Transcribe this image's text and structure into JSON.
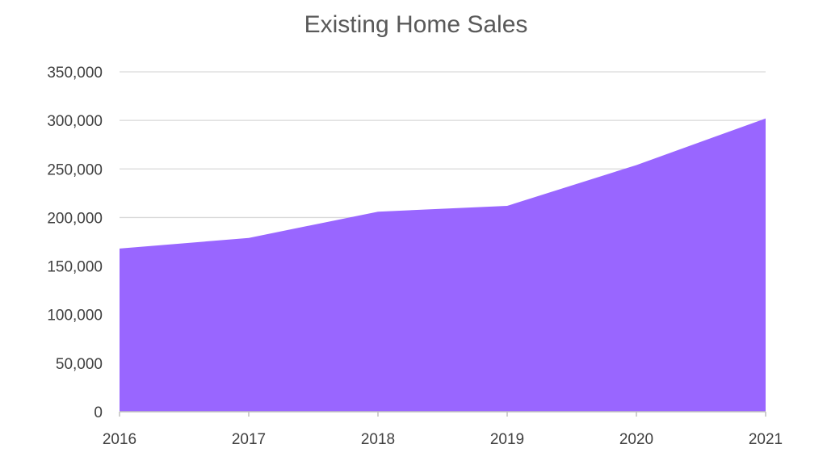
{
  "chart_data": {
    "type": "area",
    "title": "Existing Home Sales",
    "xlabel": "",
    "ylabel": "",
    "categories": [
      "2016",
      "2017",
      "2018",
      "2019",
      "2020",
      "2021"
    ],
    "values": [
      168000,
      179000,
      206000,
      212000,
      254000,
      302000
    ],
    "ylim": [
      0,
      350000
    ],
    "yticks": [
      0,
      50000,
      100000,
      150000,
      200000,
      250000,
      300000,
      350000
    ],
    "ytick_labels": [
      "0",
      "50,000",
      "100,000",
      "150,000",
      "200,000",
      "250,000",
      "300,000",
      "350,000"
    ],
    "grid": true,
    "legend": "none",
    "colors": {
      "fill": "#9966ff",
      "grid": "#d9d9d9",
      "axis": "#bfbfbf",
      "text": "#404040",
      "title": "#595959"
    }
  }
}
